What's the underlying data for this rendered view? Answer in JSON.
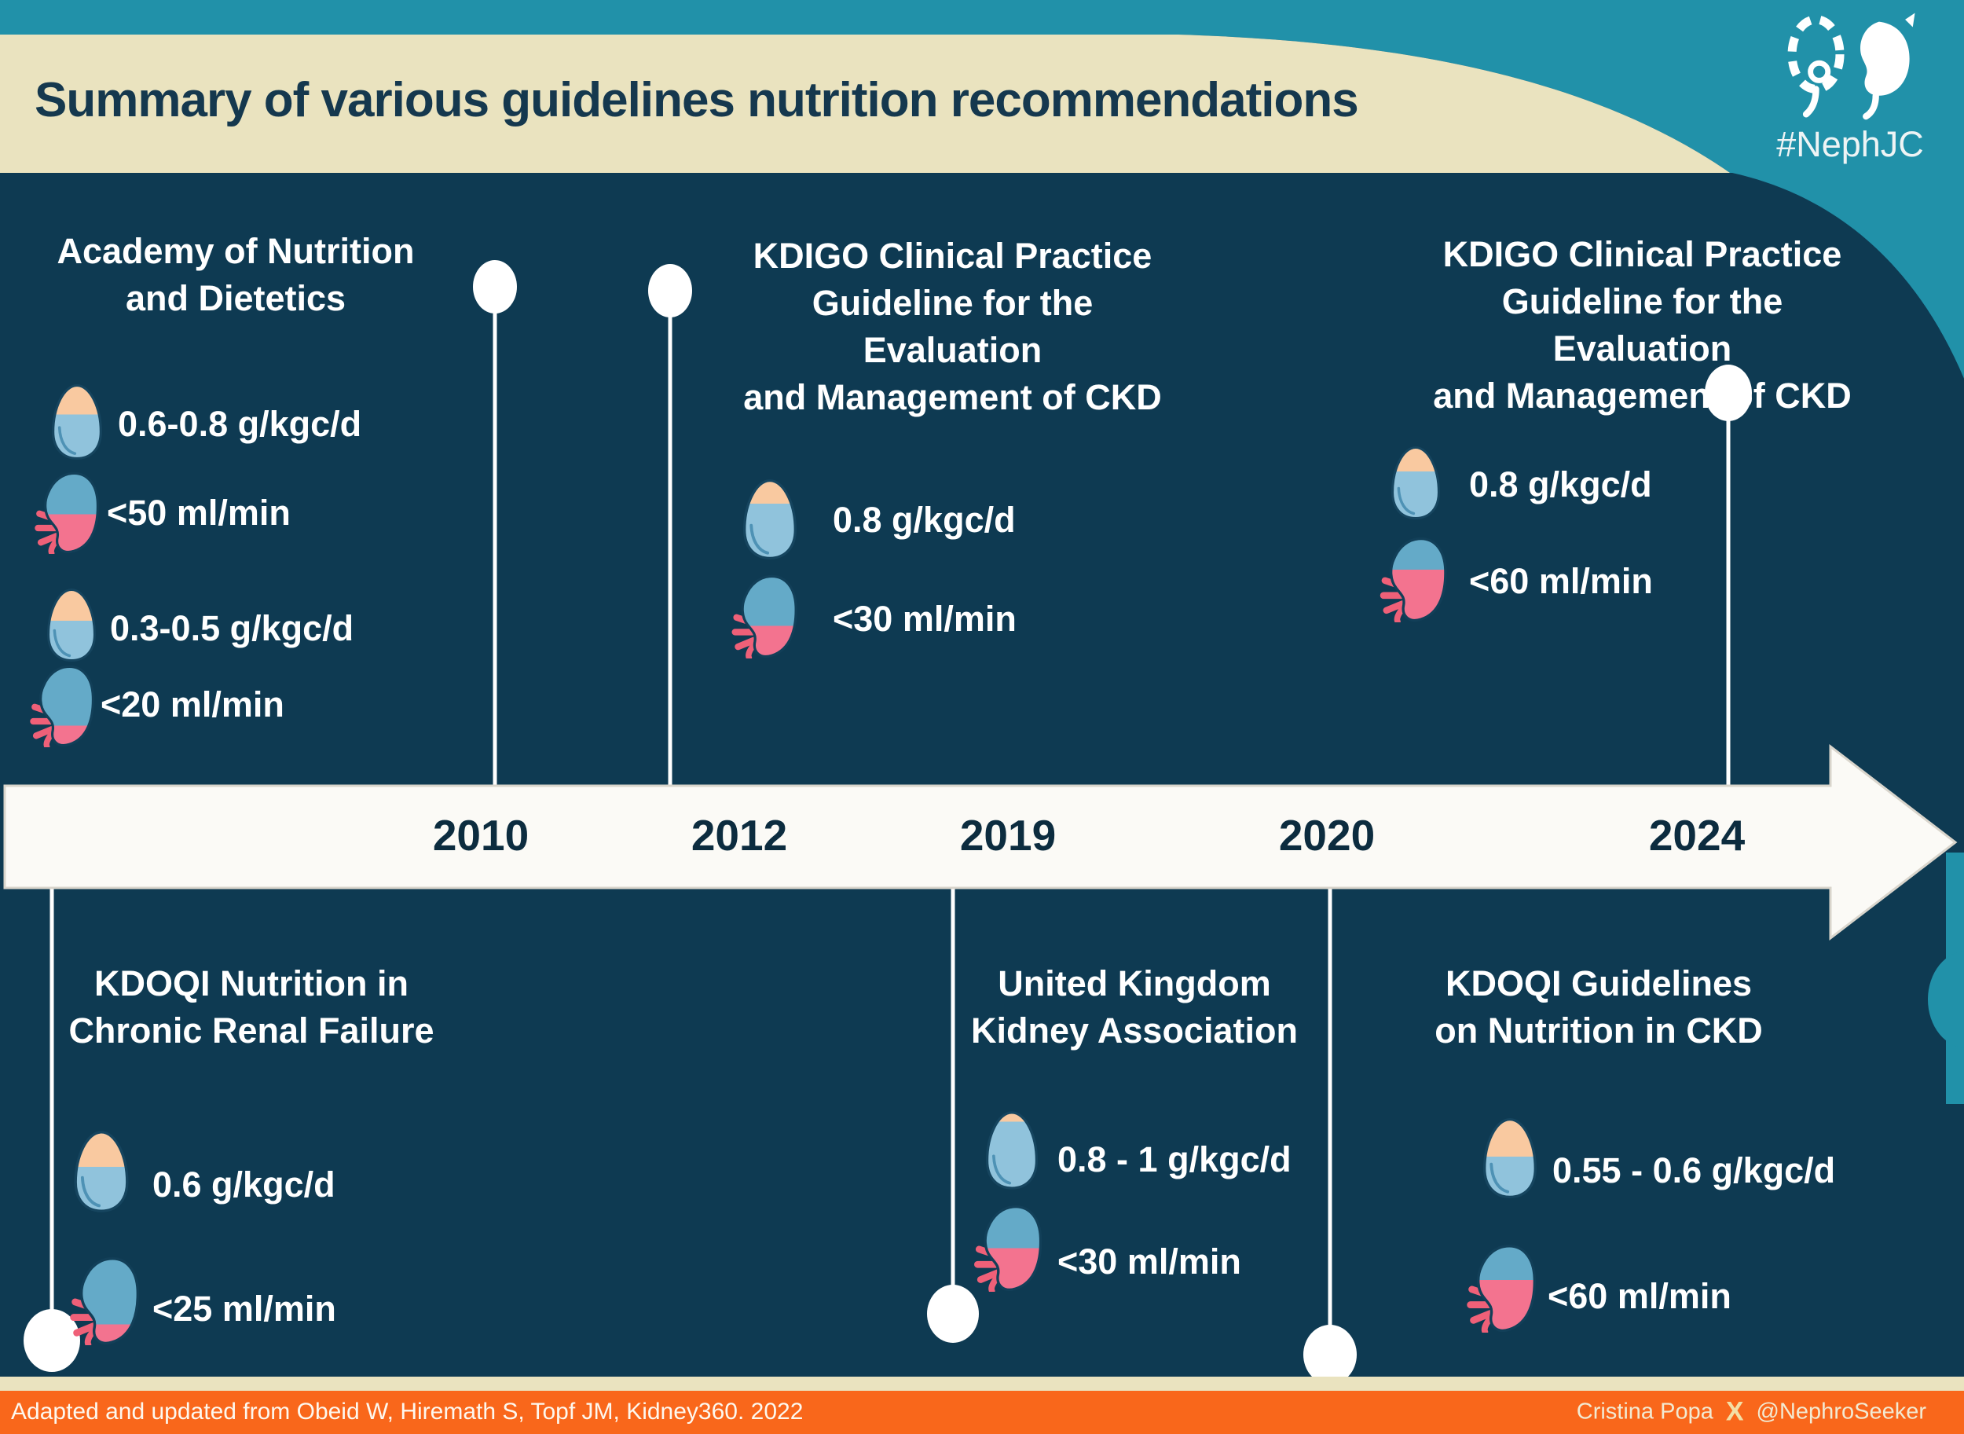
{
  "header": {
    "title": "Summary of various guidelines nutrition recommendations",
    "hashtag": "#NephJC"
  },
  "timeline": {
    "years": [
      "2010",
      "2012",
      "2019",
      "2020",
      "2024"
    ]
  },
  "sections": [
    {
      "id": "academy-2010",
      "timeline_year": "2010",
      "title_lines": [
        "Academy of Nutrition",
        "and Dietetics"
      ],
      "entries": [
        {
          "protein": "0.6-0.8 g/kgc/d",
          "gfr": "<50 ml/min"
        },
        {
          "protein": "0.3-0.5 g/kgc/d",
          "gfr": "<20 ml/min"
        }
      ]
    },
    {
      "id": "kdigo-2012",
      "timeline_year": "2012",
      "title_lines": [
        "KDIGO Clinical Practice",
        "Guideline for the Evaluation",
        "and Management of CKD"
      ],
      "entries": [
        {
          "protein": "0.8 g/kgc/d",
          "gfr": "<30 ml/min"
        }
      ]
    },
    {
      "id": "kdigo-2024",
      "timeline_year": "2024",
      "title_lines": [
        "KDIGO Clinical Practice",
        "Guideline for the Evaluation",
        "and Management of CKD"
      ],
      "entries": [
        {
          "protein": "0.8 g/kgc/d",
          "gfr": "<60 ml/min"
        }
      ]
    },
    {
      "id": "kdoqi-chronic-renal-failure",
      "timeline_year": null,
      "title_lines": [
        "KDOQI Nutrition in",
        "Chronic Renal Failure"
      ],
      "entries": [
        {
          "protein": "0.6 g/kgc/d",
          "gfr": "<25 ml/min"
        }
      ]
    },
    {
      "id": "uk-kidney-association-2019",
      "timeline_year": "2019",
      "title_lines": [
        "United Kingdom",
        "Kidney Association"
      ],
      "entries": [
        {
          "protein": "0.8 - 1 g/kgc/d",
          "gfr": "<30 ml/min"
        }
      ]
    },
    {
      "id": "kdoqi-2020",
      "timeline_year": "2020",
      "title_lines": [
        "KDOQI Guidelines",
        "on Nutrition in CKD"
      ],
      "entries": [
        {
          "protein": "0.55 - 0.6 g/kgc/d",
          "gfr": "<60 ml/min"
        }
      ]
    }
  ],
  "footer": {
    "credit": "Adapted and updated from Obeid W, Hiremath S, Topf JM, Kidney360. 2022",
    "author": "Cristina Popa",
    "x_label": "X",
    "handle": "@NephroSeeker"
  },
  "icons": {
    "protein": "egg-icon",
    "gfr": "kidney-icon",
    "brand": "nephjc-kidneys-logo",
    "social": "x-logo-icon"
  },
  "colors": {
    "navy_background": "#0e3a52",
    "teal_accent": "#2191a9",
    "cream_band": "#eae3bf",
    "orange_bar": "#f9671b",
    "timeline_white": "#fbfaf6",
    "year_text": "#0c2c3f",
    "title_text": "#15384e",
    "egg_peach": "#f9c9a0",
    "egg_blue": "#90c3dc",
    "kidney_blue": "#64aac8",
    "kidney_pink": "#f3738f"
  }
}
